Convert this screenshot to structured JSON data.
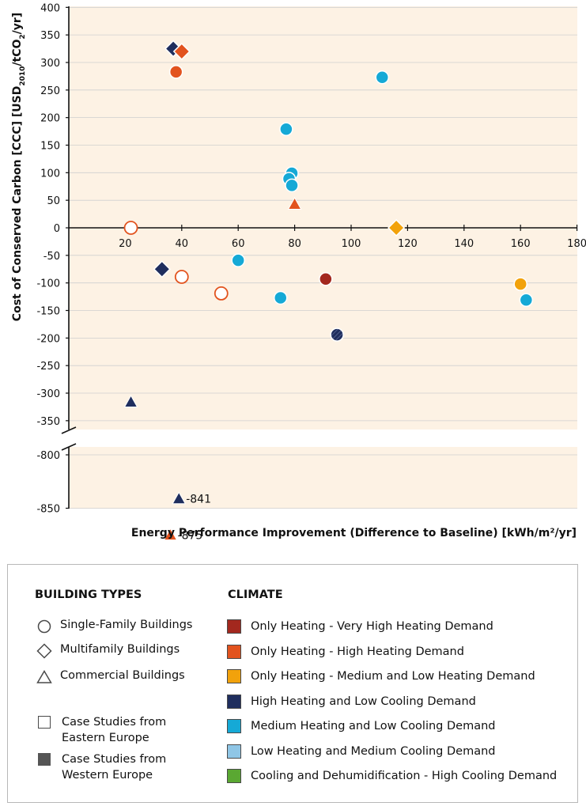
{
  "chart_data": {
    "type": "scatter",
    "xlabel": "Energy Performance Improvement (Difference to Baseline) [kWh/m²/yr]",
    "ylabel": {
      "pre": "Cost of Conserved Carbon [CCC] [USD",
      "sub1": "2010",
      "mid": "/tCO",
      "sub2": "2",
      "post": "/yr]"
    },
    "xlim": [
      0,
      180
    ],
    "ylim_upper": [
      -350,
      400
    ],
    "ylim_lower": [
      -900,
      -800
    ],
    "xticks": [
      "20",
      "40",
      "60",
      "80",
      "100",
      "120",
      "140",
      "160",
      "180"
    ],
    "yticks_upper": [
      "400",
      "350",
      "300",
      "250",
      "200",
      "150",
      "100",
      "50",
      "0",
      "-50",
      "-100",
      "-150",
      "-200",
      "-250",
      "-300",
      "-350"
    ],
    "yticks_lower": [
      "-800",
      "-850",
      "-900"
    ],
    "colors": {
      "very_high_heating": "#a3281e",
      "high_heating": "#e2531e",
      "medium_low_heating": "#f2a20b",
      "high_heating_low_cooling": "#1f2e5e",
      "medium_heating_low_cooling": "#15a9d6",
      "low_heating_medium_cooling": "#8fc6e6",
      "cooling_dehumid": "#5aa832"
    },
    "points": [
      {
        "x": 37,
        "y": 325,
        "shape": "diamond",
        "climate": "high_heating_low_cooling",
        "region": "western"
      },
      {
        "x": 40,
        "y": 320,
        "shape": "diamond",
        "climate": "high_heating",
        "region": "western"
      },
      {
        "x": 38,
        "y": 283,
        "shape": "circle",
        "climate": "high_heating",
        "region": "western"
      },
      {
        "x": 111,
        "y": 273,
        "shape": "circle",
        "climate": "medium_heating_low_cooling",
        "region": "western"
      },
      {
        "x": 77,
        "y": 179,
        "shape": "circle",
        "climate": "medium_heating_low_cooling",
        "region": "western"
      },
      {
        "x": 79,
        "y": 99,
        "shape": "circle",
        "climate": "medium_heating_low_cooling",
        "region": "western"
      },
      {
        "x": 78,
        "y": 89,
        "shape": "circle",
        "climate": "medium_heating_low_cooling",
        "region": "western"
      },
      {
        "x": 79,
        "y": 77,
        "shape": "circle",
        "climate": "medium_heating_low_cooling",
        "region": "western"
      },
      {
        "x": 80,
        "y": 43,
        "shape": "triangle",
        "climate": "high_heating",
        "region": "western"
      },
      {
        "x": 22,
        "y": 0,
        "shape": "circle",
        "climate": "high_heating",
        "region": "eastern"
      },
      {
        "x": 116,
        "y": 0,
        "shape": "diamond",
        "climate": "medium_low_heating",
        "region": "western"
      },
      {
        "x": 60,
        "y": -59,
        "shape": "circle",
        "climate": "medium_heating_low_cooling",
        "region": "western"
      },
      {
        "x": 33,
        "y": -75,
        "shape": "diamond",
        "climate": "high_heating_low_cooling",
        "region": "western"
      },
      {
        "x": 40,
        "y": -89,
        "shape": "circle",
        "climate": "high_heating",
        "region": "eastern"
      },
      {
        "x": 91,
        "y": -93,
        "shape": "circle",
        "climate": "very_high_heating",
        "region": "western"
      },
      {
        "x": 160,
        "y": -102,
        "shape": "circle",
        "climate": "medium_low_heating",
        "region": "western"
      },
      {
        "x": 54,
        "y": -119,
        "shape": "circle",
        "climate": "high_heating",
        "region": "eastern"
      },
      {
        "x": 75,
        "y": -127,
        "shape": "circle",
        "climate": "medium_heating_low_cooling",
        "region": "western"
      },
      {
        "x": 162,
        "y": -131,
        "shape": "circle",
        "climate": "medium_heating_low_cooling",
        "region": "western"
      },
      {
        "x": 95,
        "y": -194,
        "shape": "circle",
        "climate": "high_heating_low_cooling",
        "region": "western",
        "hatched": true
      },
      {
        "x": 22,
        "y": -316,
        "shape": "triangle",
        "climate": "high_heating_low_cooling",
        "region": "western"
      },
      {
        "x": 39,
        "y": -841,
        "shape": "triangle",
        "climate": "high_heating_low_cooling",
        "region": "western",
        "label": "-841"
      },
      {
        "x": 36,
        "y": -875,
        "shape": "triangle",
        "climate": "high_heating",
        "region": "western",
        "label": "-875"
      }
    ]
  },
  "legend": {
    "building_types_title": "BUILDING TYPES",
    "building_types": [
      {
        "icon": "circle",
        "label": "Single-Family Buildings"
      },
      {
        "icon": "diamond",
        "label": "Multifamily Buildings"
      },
      {
        "icon": "triangle",
        "label": "Commercial Buildings"
      }
    ],
    "regions": [
      {
        "icon": "open-square",
        "line1": "Case Studies from",
        "line2": "Eastern Europe"
      },
      {
        "icon": "filled-square",
        "line1": "Case Studies from",
        "line2": "Western Europe"
      }
    ],
    "climate_title": "CLIMATE",
    "climate": [
      {
        "color": "#a3281e",
        "label": "Only Heating - Very High Heating Demand"
      },
      {
        "color": "#e2531e",
        "label": "Only Heating -  High Heating Demand"
      },
      {
        "color": "#f2a20b",
        "label": "Only Heating - Medium and Low Heating Demand"
      },
      {
        "color": "#1f2e5e",
        "label": "High Heating and Low Cooling Demand"
      },
      {
        "color": "#15a9d6",
        "label": "Medium Heating and Low Cooling Demand"
      },
      {
        "color": "#8fc6e6",
        "label": "Low Heating and Medium Cooling Demand"
      },
      {
        "color": "#5aa832",
        "label": "Cooling and Dehumidification - High Cooling Demand"
      }
    ]
  }
}
